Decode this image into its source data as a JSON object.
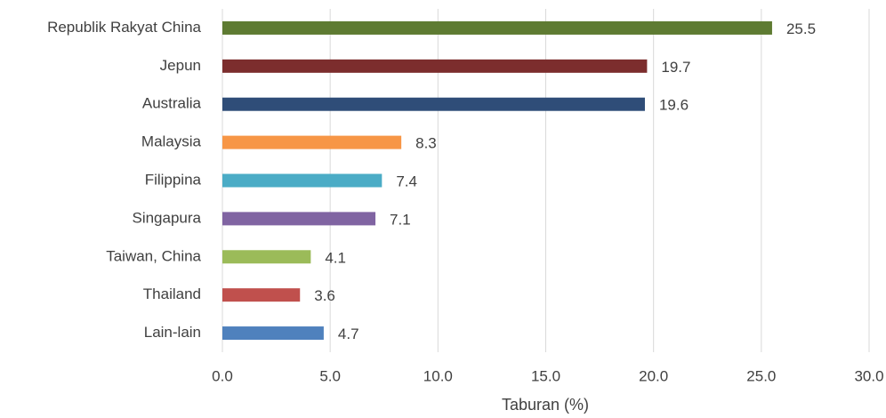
{
  "chart_data": {
    "type": "bar",
    "orientation": "horizontal",
    "x_label": "Taburan (%)",
    "categories": [
      "Republik Rakyat China",
      "Jepun",
      "Australia",
      "Malaysia",
      "Filippina",
      "Singapura",
      "Taiwan, China",
      "Thailand",
      "Lain-lain"
    ],
    "values": [
      25.5,
      19.7,
      19.6,
      8.3,
      7.4,
      7.1,
      4.1,
      3.6,
      4.7
    ],
    "colors": [
      "#5e7b32",
      "#7c2d2d",
      "#2f4d78",
      "#f79646",
      "#4bacc6",
      "#8064a2",
      "#9bbb59",
      "#c0504d",
      "#4f81bd"
    ],
    "xlim": [
      0,
      30
    ],
    "xticks": [
      {
        "value": 0,
        "label": "0.0"
      },
      {
        "value": 5,
        "label": "5.0"
      },
      {
        "value": 10,
        "label": "10.0"
      },
      {
        "value": 15,
        "label": "15.0"
      },
      {
        "value": 20,
        "label": "20.0"
      },
      {
        "value": 25,
        "label": "25.0"
      },
      {
        "value": 30,
        "label": "30.0"
      }
    ],
    "grid": true
  }
}
